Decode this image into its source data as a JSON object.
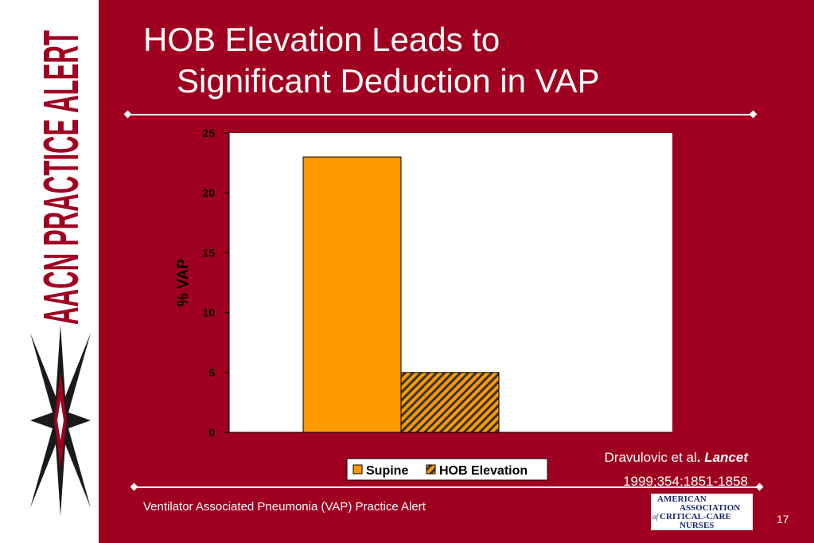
{
  "sidebar": {
    "title": "AACN PRACTICE ALERT"
  },
  "slide": {
    "title_line1": "HOB Elevation Leads to",
    "title_line2": "Significant Deduction in VAP",
    "citation_authors": "Dravulovic et al",
    "citation_journal": "Lancet",
    "citation_ref": "1999;354:1851-1858",
    "footer": "Ventilator Associated Pneumonia (VAP) Practice Alert",
    "page_number": "17",
    "org_logo": {
      "line1": "AMERICAN",
      "line2": "ASSOCIATION",
      "line3_prefix": "of",
      "line3": "CRITICAL-CARE",
      "line4": "NURSES"
    }
  },
  "colors": {
    "background": "#a00020",
    "supine": "#ff9900",
    "hob_fill": "#ff9900",
    "hob_hatch": "#333333"
  },
  "chart_data": {
    "type": "bar",
    "categories": [
      ""
    ],
    "series": [
      {
        "name": "Supine",
        "values": [
          23
        ]
      },
      {
        "name": "HOB Elevation",
        "values": [
          5
        ]
      }
    ],
    "ylabel": "% VAP",
    "xlabel": "",
    "ylim": [
      0,
      25
    ],
    "yticks": [
      0,
      5,
      10,
      15,
      20,
      25
    ],
    "grid": false,
    "legend_position": "bottom"
  }
}
